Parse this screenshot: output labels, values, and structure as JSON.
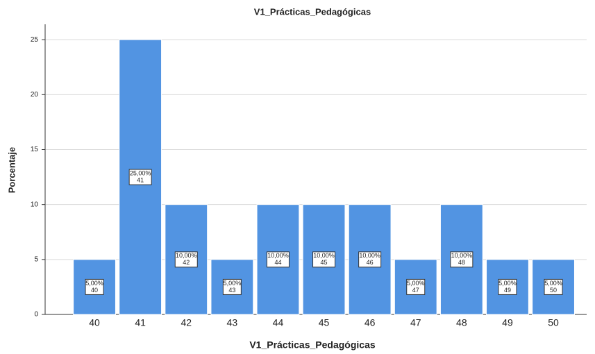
{
  "chart_data": {
    "type": "bar",
    "title": "V1_Prácticas_Pedagógicas",
    "x_label": "V1_Prácticas_Pedagógicas",
    "y_label": "Porcentaje",
    "categories": [
      "40",
      "41",
      "42",
      "43",
      "44",
      "45",
      "46",
      "47",
      "48",
      "49",
      "50"
    ],
    "values": [
      5,
      25,
      10,
      5,
      10,
      10,
      10,
      5,
      10,
      5,
      5
    ],
    "value_labels": [
      "5,00%",
      "25,00%",
      "10,00%",
      "5,00%",
      "10,00%",
      "10,00%",
      "10,00%",
      "5,00%",
      "10,00%",
      "5,00%",
      "5,00%"
    ],
    "color": "#5294e2",
    "ylim": [
      0,
      26.4
    ],
    "yticks": [
      0,
      5,
      10,
      15,
      20,
      25
    ],
    "grid": true
  }
}
